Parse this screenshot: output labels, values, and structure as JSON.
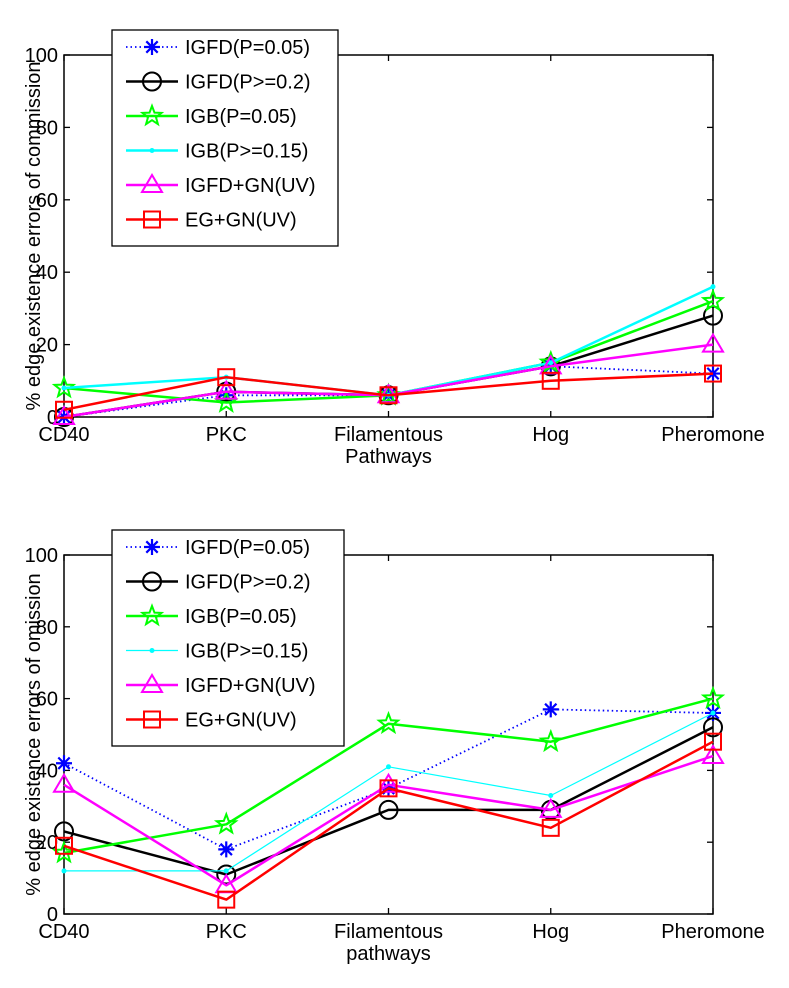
{
  "chart_data": [
    {
      "type": "line",
      "categories": [
        "CD40",
        "PKC",
        "Filamentous\nPathways",
        "Hog",
        "Pheromone"
      ],
      "ylabel": "% edge existence errors of commission",
      "xlabel": "",
      "title": "",
      "ylim": [
        0,
        100
      ],
      "yticks": [
        0,
        20,
        40,
        60,
        80,
        100
      ],
      "grid": false,
      "legend_position": "top-left",
      "series": [
        {
          "name": "IGFD(P=0.05)",
          "values": [
            0,
            6,
            6,
            14,
            12
          ],
          "color": "#0000ff",
          "marker": "asterisk",
          "line": "dotted"
        },
        {
          "name": "IGFD(P>=0.2)",
          "values": [
            0,
            7,
            6,
            14,
            28
          ],
          "color": "#000000",
          "marker": "circle",
          "line": "solid"
        },
        {
          "name": "IGB(P=0.05)",
          "values": [
            8,
            4,
            6,
            15,
            32
          ],
          "color": "#00ff00",
          "marker": "star",
          "line": "solid"
        },
        {
          "name": "IGB(P>=0.15)",
          "values": [
            8,
            11,
            6,
            15,
            36
          ],
          "color": "#00ffff",
          "marker": "dot",
          "line": "solid"
        },
        {
          "name": "IGFD+GN(UV)",
          "values": [
            0,
            7,
            6,
            14,
            20
          ],
          "color": "#ff00ff",
          "marker": "triangle",
          "line": "solid"
        },
        {
          "name": "EG+GN(UV)",
          "values": [
            2,
            11,
            6,
            10,
            12
          ],
          "color": "#ff0000",
          "marker": "square",
          "line": "solid"
        }
      ]
    },
    {
      "type": "line",
      "categories": [
        "CD40",
        "PKC",
        "Filamentous\npathways",
        "Hog",
        "Pheromone"
      ],
      "ylabel": "% edge existence errors of omission",
      "xlabel": "",
      "title": "",
      "ylim": [
        0,
        100
      ],
      "yticks": [
        0,
        20,
        40,
        60,
        80,
        100
      ],
      "grid": false,
      "legend_position": "top-left",
      "series": [
        {
          "name": "IGFD(P=0.05)",
          "values": [
            42,
            18,
            35,
            57,
            56
          ],
          "color": "#0000ff",
          "marker": "asterisk",
          "line": "dotted"
        },
        {
          "name": "IGFD(P>=0.2)",
          "values": [
            23,
            11,
            29,
            29,
            52
          ],
          "color": "#000000",
          "marker": "circle",
          "line": "solid"
        },
        {
          "name": "IGB(P=0.05)",
          "values": [
            17,
            25,
            53,
            48,
            60
          ],
          "color": "#00ff00",
          "marker": "star",
          "line": "solid"
        },
        {
          "name": "IGB(P>=0.15)",
          "values": [
            12,
            12,
            41,
            33,
            56
          ],
          "color": "#00ffff",
          "marker": "dot",
          "line": "thin"
        },
        {
          "name": "IGFD+GN(UV)",
          "values": [
            36,
            8,
            36,
            29,
            44
          ],
          "color": "#ff00ff",
          "marker": "triangle",
          "line": "solid"
        },
        {
          "name": "EG+GN(UV)",
          "values": [
            19,
            4,
            35,
            24,
            48
          ],
          "color": "#ff0000",
          "marker": "square",
          "line": "solid"
        }
      ]
    }
  ]
}
